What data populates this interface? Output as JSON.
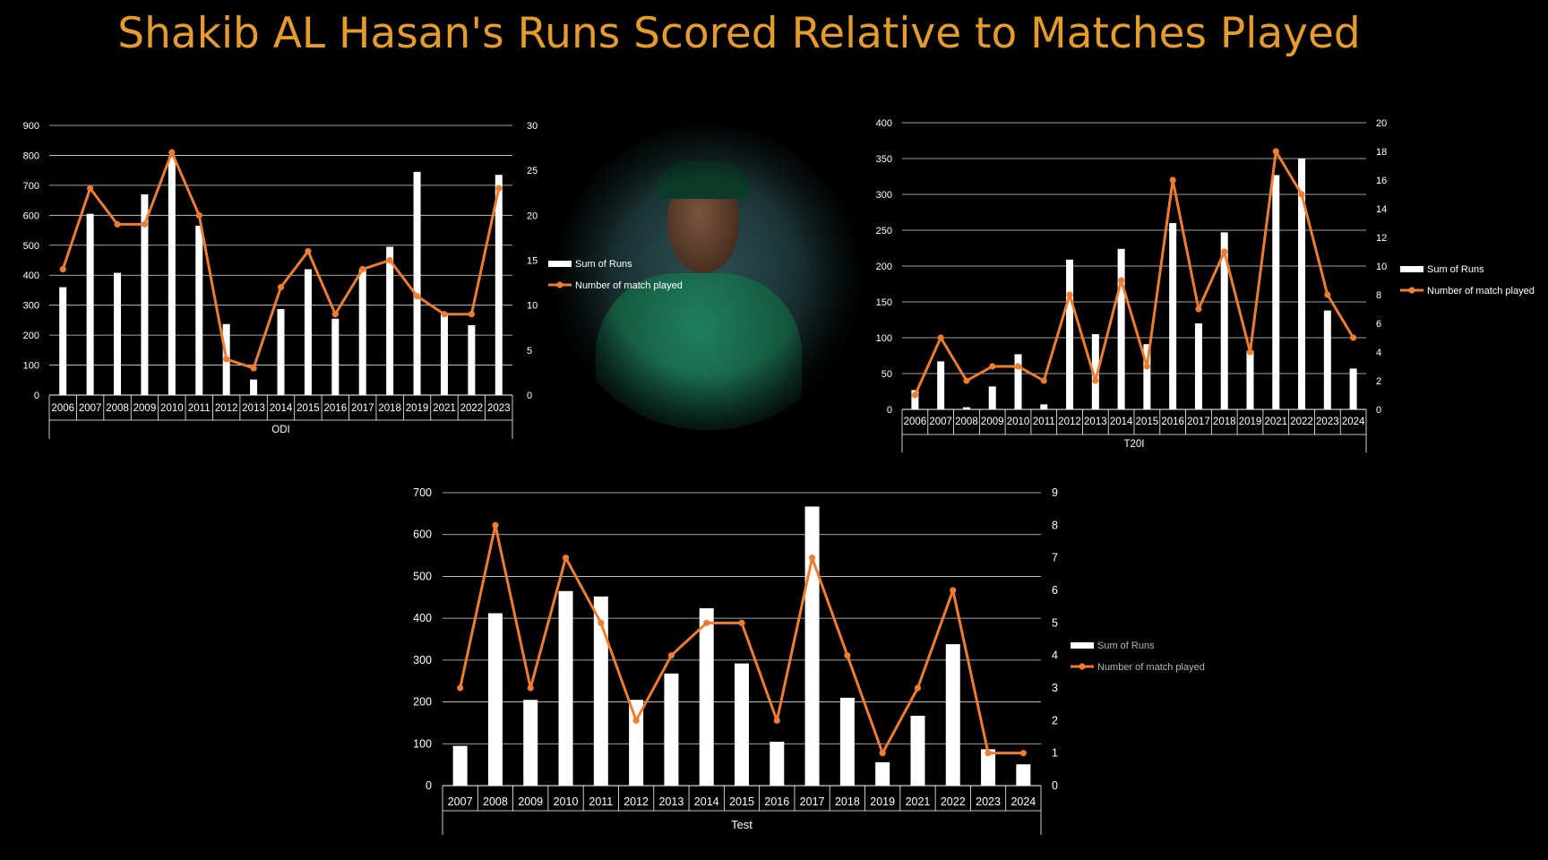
{
  "title": "Shakib AL Hasan's Runs Scored Relative to Matches Played",
  "colors": {
    "title": "#E59C2E",
    "bar": "#FFFFFF",
    "line": "#ED7D31",
    "axis_text": "#FFFFFF",
    "grid": "#FFFFFF"
  },
  "photo": {
    "description_icon": "player-portrait-icon"
  },
  "chart_data": [
    {
      "type": "bar+line",
      "xlabel": "ODI",
      "categories": [
        "2006",
        "2007",
        "2008",
        "2009",
        "2010",
        "2011",
        "2012",
        "2013",
        "2014",
        "2015",
        "2016",
        "2017",
        "2018",
        "2019",
        "2021",
        "2022",
        "2023"
      ],
      "series": [
        {
          "name": "Sum of Runs",
          "type": "bar",
          "axis": "left",
          "values": [
            360,
            605,
            408,
            670,
            795,
            565,
            237,
            52,
            287,
            420,
            255,
            420,
            495,
            745,
            275,
            233,
            735
          ]
        },
        {
          "name": "Number of match played",
          "type": "line",
          "axis": "right",
          "values": [
            14,
            23,
            19,
            19,
            27,
            20,
            4,
            3,
            12,
            16,
            9,
            14,
            15,
            11,
            9,
            9,
            23
          ]
        }
      ],
      "ylim_left": [
        0,
        900
      ],
      "yticks_left": [
        0,
        100,
        200,
        300,
        400,
        500,
        600,
        700,
        800,
        900
      ],
      "ylim_right": [
        0,
        30
      ],
      "yticks_right": [
        0,
        5,
        10,
        15,
        20,
        25,
        30
      ],
      "legend": "right"
    },
    {
      "type": "bar+line",
      "xlabel": "T20I",
      "categories": [
        "2006",
        "2007",
        "2008",
        "2009",
        "2010",
        "2011",
        "2012",
        "2013",
        "2014",
        "2015",
        "2016",
        "2017",
        "2018",
        "2019",
        "2021",
        "2022",
        "2023",
        "2024"
      ],
      "series": [
        {
          "name": "Sum of Runs",
          "type": "bar",
          "axis": "left",
          "values": [
            27,
            67,
            3,
            32,
            77,
            7,
            209,
            105,
            224,
            91,
            260,
            120,
            247,
            82,
            327,
            350,
            138,
            57
          ]
        },
        {
          "name": "Number of match played",
          "type": "line",
          "axis": "right",
          "values": [
            1,
            5,
            2,
            3,
            3,
            2,
            8,
            2,
            9,
            3,
            16,
            7,
            11,
            4,
            18,
            15,
            8,
            5
          ]
        }
      ],
      "ylim_left": [
        0,
        400
      ],
      "yticks_left": [
        0,
        50,
        100,
        150,
        200,
        250,
        300,
        350,
        400
      ],
      "ylim_right": [
        0,
        20
      ],
      "yticks_right": [
        0,
        2,
        4,
        6,
        8,
        10,
        12,
        14,
        16,
        18,
        20
      ],
      "legend": "right"
    },
    {
      "type": "bar+line",
      "xlabel": "Test",
      "categories": [
        "2007",
        "2008",
        "2009",
        "2010",
        "2011",
        "2012",
        "2013",
        "2014",
        "2015",
        "2016",
        "2017",
        "2018",
        "2019",
        "2021",
        "2022",
        "2023",
        "2024"
      ],
      "series": [
        {
          "name": "Sum of Runs",
          "type": "bar",
          "axis": "left",
          "values": [
            95,
            412,
            205,
            465,
            452,
            205,
            268,
            424,
            292,
            105,
            667,
            210,
            56,
            167,
            338,
            87,
            51
          ]
        },
        {
          "name": "Number of match played",
          "type": "line",
          "axis": "right",
          "values": [
            3,
            8,
            3,
            7,
            5,
            2,
            4,
            5,
            5,
            2,
            7,
            4,
            1,
            3,
            6,
            1,
            1
          ]
        }
      ],
      "ylim_left": [
        0,
        700
      ],
      "yticks_left": [
        0,
        100,
        200,
        300,
        400,
        500,
        600,
        700
      ],
      "ylim_right": [
        0,
        9
      ],
      "yticks_right": [
        0,
        1,
        2,
        3,
        4,
        5,
        6,
        7,
        8,
        9
      ],
      "legend": "right"
    }
  ]
}
